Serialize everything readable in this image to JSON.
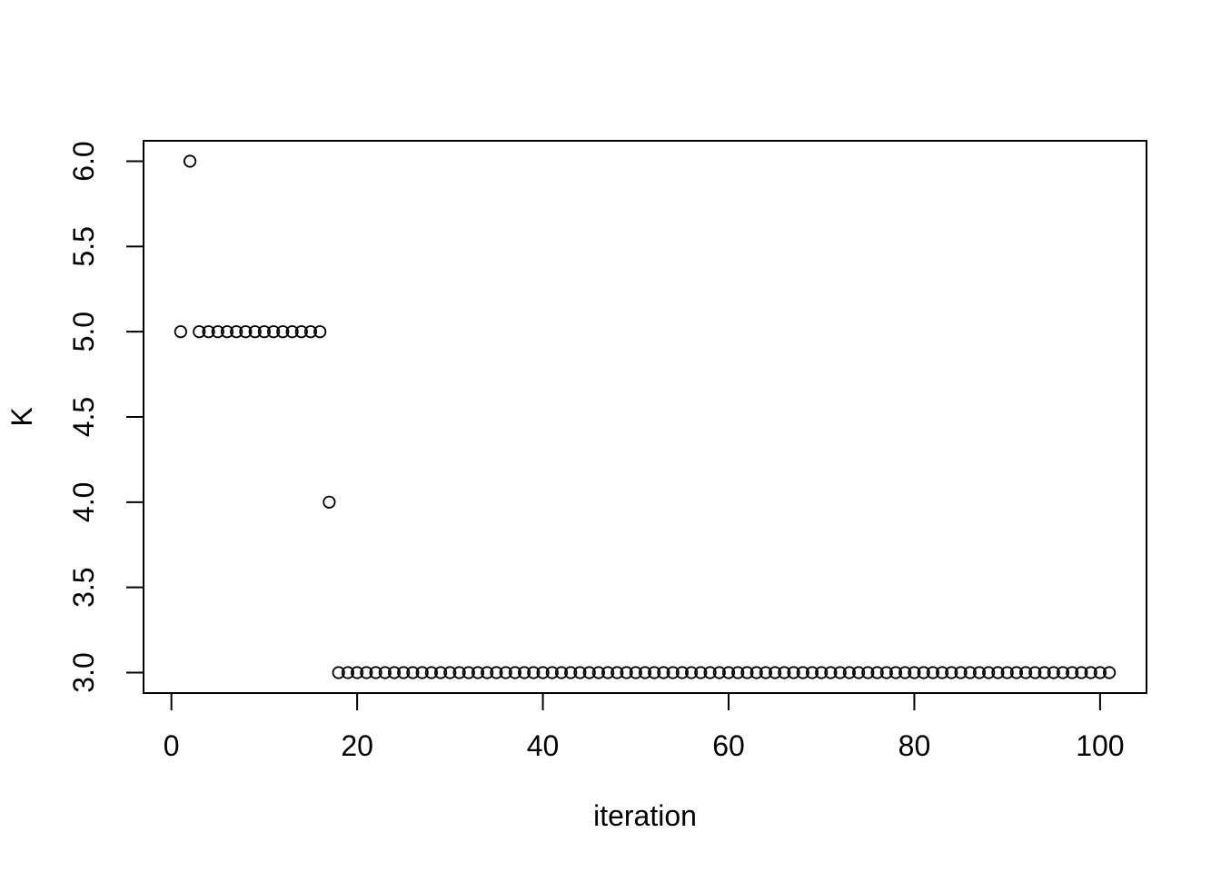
{
  "page": {
    "background": "#ffffff",
    "foreground": "#000000"
  },
  "chart_data": {
    "type": "scatter",
    "title": "",
    "xlabel": "iteration",
    "ylabel": "K",
    "legend": "none",
    "grid": false,
    "marker": "open-circle",
    "marker_color": "#000000",
    "xlim": [
      -3.0,
      105.0
    ],
    "ylim": [
      2.88,
      6.12
    ],
    "xticks": [
      0,
      20,
      40,
      60,
      80,
      100
    ],
    "xtick_labels": [
      "0",
      "20",
      "40",
      "60",
      "80",
      "100"
    ],
    "yticks": [
      3.0,
      3.5,
      4.0,
      4.5,
      5.0,
      5.5,
      6.0
    ],
    "ytick_labels": [
      "3.0",
      "3.5",
      "4.0",
      "4.5",
      "5.0",
      "5.5",
      "6.0"
    ],
    "x": [
      1,
      2,
      3,
      4,
      5,
      6,
      7,
      8,
      9,
      10,
      11,
      12,
      13,
      14,
      15,
      16,
      17,
      18,
      19,
      20,
      21,
      22,
      23,
      24,
      25,
      26,
      27,
      28,
      29,
      30,
      31,
      32,
      33,
      34,
      35,
      36,
      37,
      38,
      39,
      40,
      41,
      42,
      43,
      44,
      45,
      46,
      47,
      48,
      49,
      50,
      51,
      52,
      53,
      54,
      55,
      56,
      57,
      58,
      59,
      60,
      61,
      62,
      63,
      64,
      65,
      66,
      67,
      68,
      69,
      70,
      71,
      72,
      73,
      74,
      75,
      76,
      77,
      78,
      79,
      80,
      81,
      82,
      83,
      84,
      85,
      86,
      87,
      88,
      89,
      90,
      91,
      92,
      93,
      94,
      95,
      96,
      97,
      98,
      99,
      100,
      101
    ],
    "y": [
      5,
      6,
      5,
      5,
      5,
      5,
      5,
      5,
      5,
      5,
      5,
      5,
      5,
      5,
      5,
      5,
      4,
      3,
      3,
      3,
      3,
      3,
      3,
      3,
      3,
      3,
      3,
      3,
      3,
      3,
      3,
      3,
      3,
      3,
      3,
      3,
      3,
      3,
      3,
      3,
      3,
      3,
      3,
      3,
      3,
      3,
      3,
      3,
      3,
      3,
      3,
      3,
      3,
      3,
      3,
      3,
      3,
      3,
      3,
      3,
      3,
      3,
      3,
      3,
      3,
      3,
      3,
      3,
      3,
      3,
      3,
      3,
      3,
      3,
      3,
      3,
      3,
      3,
      3,
      3,
      3,
      3,
      3,
      3,
      3,
      3,
      3,
      3,
      3,
      3,
      3,
      3,
      3,
      3,
      3,
      3,
      3,
      3,
      3,
      3,
      3
    ]
  }
}
